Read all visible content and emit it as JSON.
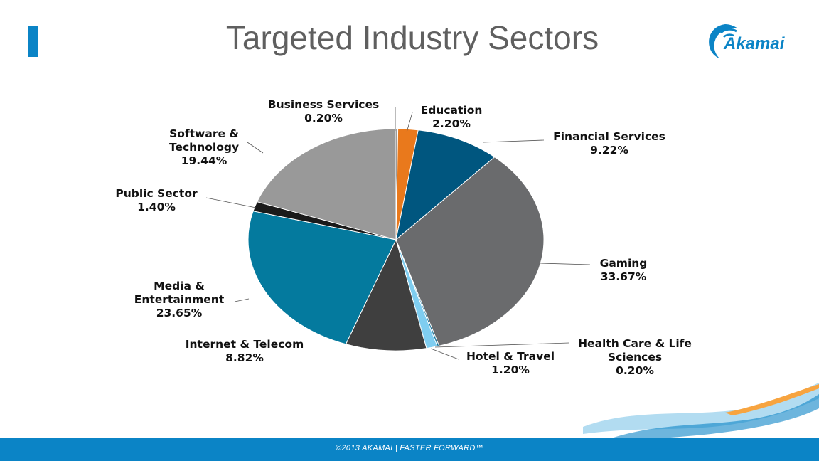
{
  "slide": {
    "title": "Targeted Industry Sectors",
    "logo_text": "Akamai",
    "footer": "©2013 AKAMAI  |  FASTER FORWARD™",
    "accent_color": "#0b84c6"
  },
  "chart_data": {
    "type": "pie",
    "title": "",
    "start_angle_deg": -90,
    "direction": "clockwise",
    "slices": [
      {
        "label": "Business Services",
        "value": 0.2,
        "color": "#3a3a3a"
      },
      {
        "label": "Education",
        "value": 2.2,
        "color": "#e9791c"
      },
      {
        "label": "Financial Services",
        "value": 9.22,
        "color": "#00567f"
      },
      {
        "label": "Gaming",
        "value": 33.67,
        "color": "#6a6b6d"
      },
      {
        "label": "Health Care & Life Sciences",
        "value": 0.2,
        "color": "#0e6e95"
      },
      {
        "label": "Hotel & Travel",
        "value": 1.2,
        "color": "#7fcdf0"
      },
      {
        "label": "Internet & Telecom",
        "value": 8.82,
        "color": "#3f3f3f"
      },
      {
        "label": "Media & Entertainment",
        "value": 23.65,
        "color": "#047a9e"
      },
      {
        "label": "Public Sector",
        "value": 1.4,
        "color": "#1a1a1a"
      },
      {
        "label": "Software & Technology",
        "value": 19.44,
        "color": "#999999"
      }
    ],
    "labels": [
      {
        "lines": [
          "Business Services",
          "0.20%"
        ]
      },
      {
        "lines": [
          "Education",
          "2.20%"
        ]
      },
      {
        "lines": [
          "Financial Services",
          "9.22%"
        ]
      },
      {
        "lines": [
          "Gaming",
          "33.67%"
        ]
      },
      {
        "lines": [
          "Health Care & Life",
          "Sciences",
          "0.20%"
        ]
      },
      {
        "lines": [
          "Hotel & Travel",
          "1.20%"
        ]
      },
      {
        "lines": [
          "Internet & Telecom",
          "8.82%"
        ]
      },
      {
        "lines": [
          "Media &",
          "Entertainment",
          "23.65%"
        ]
      },
      {
        "lines": [
          "Public Sector",
          "1.40%"
        ]
      },
      {
        "lines": [
          "Software &",
          "Technology",
          "19.44%"
        ]
      }
    ]
  }
}
